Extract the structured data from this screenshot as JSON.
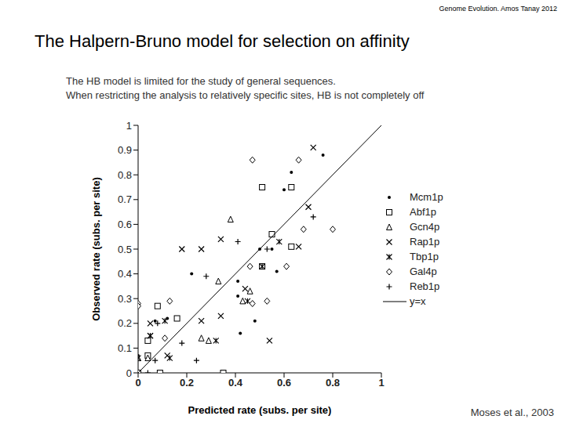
{
  "chart_data": {
    "type": "scatter",
    "header": "Genome Evolution. Amos Tanay 2012",
    "title": "The Halpern-Bruno model for selection on affinity",
    "subtitle": [
      "The HB model is limited for the study of general sequences.",
      "When restricting the analysis to relatively specific sites, HB is not completely off"
    ],
    "source": "Moses et al., 2003",
    "x_label": "Predicted rate (subs. per site)",
    "y_label": "Observed rate (subs. per site)",
    "xlim": [
      0,
      1
    ],
    "xticks": [
      0,
      0.2,
      0.4,
      0.6,
      0.8,
      1
    ],
    "ylim": [
      0,
      1
    ],
    "yticks": [
      0,
      0.1,
      0.2,
      0.3,
      0.4,
      0.5,
      0.6,
      0.7,
      0.8,
      0.9,
      1
    ],
    "grid": false,
    "legend": "right",
    "series": [
      {
        "name": "Mcm1p",
        "type": "scatter",
        "marker": "dot",
        "color": "#000000",
        "x": [
          0.76,
          0.63,
          0.6,
          0.22,
          0.41,
          0.41,
          0.55,
          0.57,
          0.48,
          0.42,
          0.12,
          0.07,
          0,
          0.5
        ],
        "values": [
          0.88,
          0.81,
          0.74,
          0.4,
          0.37,
          0.31,
          0.5,
          0.41,
          0.21,
          0.16,
          0.22,
          0.21,
          0.07,
          0.5
        ]
      },
      {
        "name": "Abf1p",
        "type": "scatter",
        "marker": "square",
        "color": "#000000",
        "x": [
          0.51,
          0.63,
          0.55,
          0.63,
          0.08,
          0.04,
          0.35,
          0.09,
          0,
          0.51,
          0.04,
          0.16
        ],
        "values": [
          0.75,
          0.75,
          0.56,
          0.51,
          0.27,
          0.13,
          0,
          0,
          0,
          0.43,
          0.07,
          0.22
        ]
      },
      {
        "name": "Gcn4p",
        "type": "scatter",
        "marker": "triangle",
        "color": "#000000",
        "x": [
          0.38,
          0.33,
          0.26,
          0.29,
          0,
          0.04,
          0.46,
          0.43
        ],
        "values": [
          0.62,
          0.37,
          0.14,
          0.13,
          0.06,
          0.06,
          0.33,
          0.29
        ]
      },
      {
        "name": "Rap1p",
        "type": "scatter",
        "marker": "x",
        "color": "#000000",
        "x": [
          0.72,
          0.7,
          0.18,
          0.26,
          0.34,
          0.66,
          0.54,
          0.44,
          0.34,
          0.26,
          0.12,
          0.05,
          0.05
        ],
        "values": [
          0.91,
          0.67,
          0.5,
          0.5,
          0.54,
          0.51,
          0.13,
          0.34,
          0.23,
          0.21,
          0.07,
          0.2,
          0.15
        ]
      },
      {
        "name": "Tbp1p",
        "type": "scatter",
        "marker": "asterisk",
        "color": "#000000",
        "x": [
          0.58,
          0.51,
          0.45,
          0.32,
          0.13,
          0.11,
          0.05,
          0
        ],
        "values": [
          0.53,
          0.43,
          0.29,
          0.13,
          0.06,
          0.21,
          0.15,
          0.06
        ]
      },
      {
        "name": "Gal4p",
        "type": "scatter",
        "marker": "diamond",
        "color": "#000000",
        "x": [
          0.47,
          0.66,
          0.68,
          0.8,
          0.46,
          0.61,
          0.53,
          0.47,
          0.13,
          0.11,
          0,
          0
        ],
        "values": [
          0.86,
          0.86,
          0.58,
          0.58,
          0.43,
          0.43,
          0.29,
          0.28,
          0.29,
          0.14,
          0.28,
          0.27
        ]
      },
      {
        "name": "Reb1p",
        "type": "scatter",
        "marker": "plus",
        "color": "#000000",
        "x": [
          0.72,
          0.41,
          0.28,
          0.53,
          0.18,
          0.08,
          0.24,
          0.04,
          0.07
        ],
        "values": [
          0.63,
          0.53,
          0.39,
          0.5,
          0.12,
          0.2,
          0.05,
          0,
          0.05
        ]
      },
      {
        "name": "y=x",
        "type": "line",
        "line_style": "solid",
        "color": "#000000",
        "x": [
          0,
          1
        ],
        "values": [
          0,
          1
        ]
      }
    ]
  }
}
